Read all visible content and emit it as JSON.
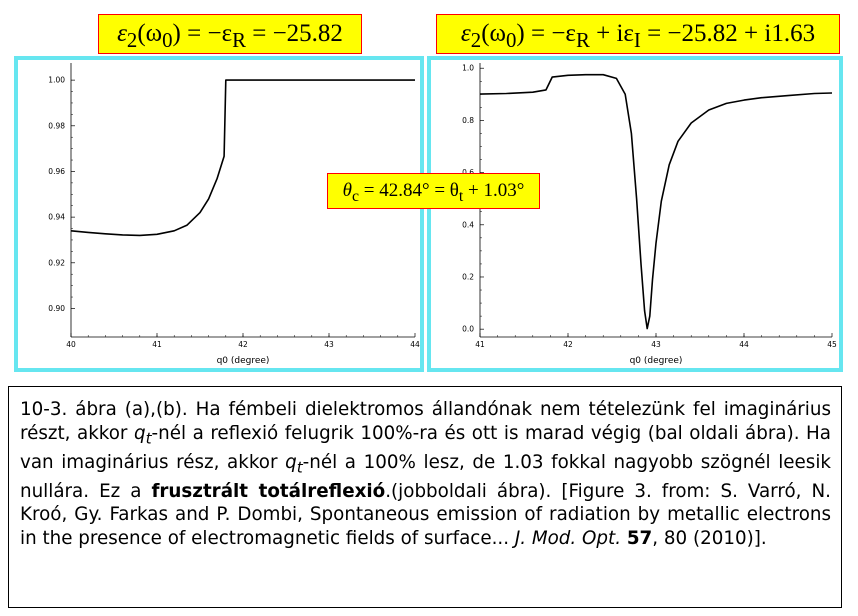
{
  "eq_left": {
    "lhs": "ε",
    "sub": "2",
    "arg": "(ω",
    "argsub": "0",
    "rhs": ") = −ε",
    "rsub": "R",
    "val": " = −25.82"
  },
  "eq_right": {
    "lhs": "ε",
    "sub": "2",
    "arg": "(ω",
    "argsub": "0",
    "rhs": ") = −ε",
    "rsub": "R",
    "mid": " + iε",
    "isub": "I",
    "val": " = −25.82 + i1.63"
  },
  "eq_theta": {
    "lhs": "θ",
    "sub": "c",
    "val": " = 42.84° = θ",
    "tsub": "t",
    "rest": " + 1.03°"
  },
  "chart_data": [
    {
      "type": "line",
      "xlabel": "q0 (degree)",
      "xlim": [
        40,
        44
      ],
      "ylim": [
        0.8875,
        1.0075
      ],
      "x_ticks": [
        "40",
        "41",
        "42",
        "43",
        "44"
      ],
      "y_ticks": [
        "0.90",
        "0.92",
        "0.94",
        "0.96",
        "0.98",
        "1.00"
      ],
      "series": [
        {
          "x": [
            40.0,
            40.2,
            40.4,
            40.6,
            40.8,
            41.0,
            41.2,
            41.35,
            41.5,
            41.6,
            41.7,
            41.78,
            41.8,
            42.0,
            42.5,
            43.0,
            43.5,
            44.0
          ],
          "y": [
            0.934,
            0.9333,
            0.9327,
            0.9322,
            0.932,
            0.9325,
            0.934,
            0.9365,
            0.942,
            0.948,
            0.957,
            0.9667,
            1.0,
            1.0,
            1.0,
            1.0,
            1.0,
            1.0
          ]
        }
      ]
    },
    {
      "type": "line",
      "xlabel": "q0 (degree)",
      "xlim": [
        41,
        45
      ],
      "ylim": [
        -0.03,
        1.02
      ],
      "x_ticks": [
        "41",
        "42",
        "43",
        "44",
        "45"
      ],
      "y_ticks": [
        "0.0",
        "0.2",
        "0.4",
        "0.6",
        "0.8",
        "1.0"
      ],
      "series": [
        {
          "x": [
            41.0,
            41.3,
            41.6,
            41.75,
            41.82,
            42.0,
            42.2,
            42.4,
            42.55,
            42.65,
            42.72,
            42.78,
            42.83,
            42.87,
            42.9,
            42.93,
            42.96,
            43.0,
            43.06,
            43.15,
            43.25,
            43.4,
            43.6,
            43.8,
            44.0,
            44.2,
            44.5,
            44.8,
            45.0
          ],
          "y": [
            0.901,
            0.903,
            0.908,
            0.917,
            0.966,
            0.973,
            0.975,
            0.975,
            0.961,
            0.9,
            0.75,
            0.5,
            0.25,
            0.07,
            0.002,
            0.05,
            0.19,
            0.33,
            0.49,
            0.63,
            0.72,
            0.79,
            0.84,
            0.865,
            0.878,
            0.887,
            0.895,
            0.903,
            0.905
          ]
        }
      ]
    }
  ],
  "caption": {
    "p1": "10-3. ábra (a),(b). Ha fémbeli dielektromos állandónak nem tételezünk fel imaginárius részt, akkor ",
    "q1": "q",
    "t1": "t",
    "p2": "-nél a reflexió felugrik 100%-ra és ott is marad végig (bal oldali ábra). Ha van imaginárius rész, akkor ",
    "q2": "q",
    "t2": "t",
    "p3": "-nél a 100% lesz, de 1.03 fokkal nagyobb szögnél leesik nullára. Ez a ",
    "bold": "frusztrált totálreflexió",
    "p4": ".(jobboldali ábra).  [Figure 3. from: S. Varró, N. Kroó, Gy. Farkas and P. Dombi, Spontaneous emission of radiation by metallic electrons in the presence of electromagnetic fields of surface... ",
    "journal": "J. Mod. Opt.",
    "vol": "57",
    "p5": ", 80 (2010)]."
  }
}
